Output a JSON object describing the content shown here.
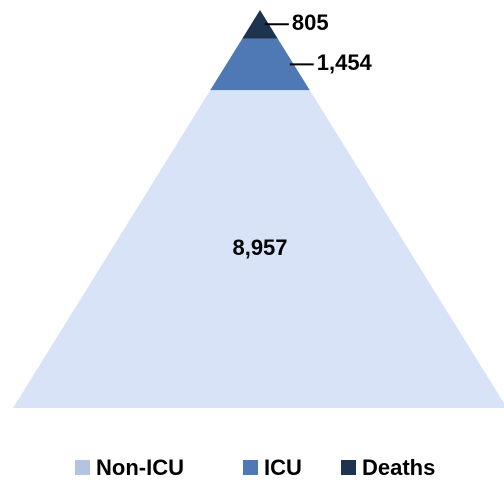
{
  "chart_data": {
    "type": "pyramid",
    "categories": [
      "Non-ICU",
      "ICU",
      "Deaths"
    ],
    "values": [
      8957,
      1454,
      805
    ],
    "value_labels": [
      "8,957",
      "1,454",
      "805"
    ],
    "colors": [
      "#d9e3f7",
      "#4f79b5",
      "#1e3350"
    ],
    "legend_colors": [
      "#b4c4e0",
      "#4f79b5",
      "#1e3350"
    ],
    "legend": "bottom"
  }
}
